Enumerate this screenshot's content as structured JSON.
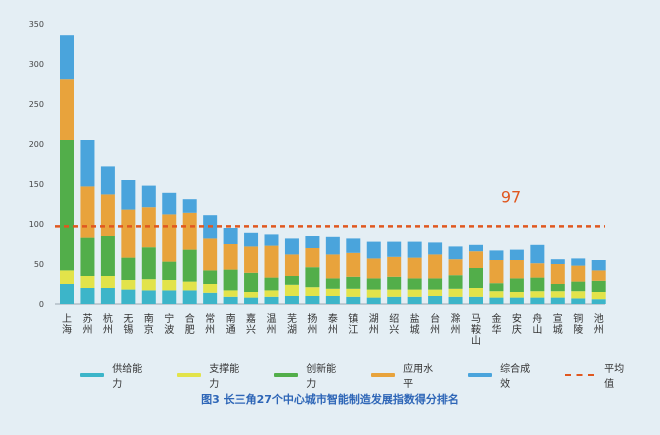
{
  "chart_data": {
    "type": "bar",
    "stacked": true,
    "title": "图3 长三角27个中心城市智能制造发展指数得分排名",
    "categories": [
      "上海",
      "苏州",
      "杭州",
      "无锡",
      "南京",
      "宁波",
      "合肥",
      "常州",
      "南通",
      "嘉兴",
      "温州",
      "芜湖",
      "扬州",
      "泰州",
      "镇江",
      "湖州",
      "绍兴",
      "盐城",
      "台州",
      "滁州",
      "马鞍山",
      "金华",
      "安庆",
      "舟山",
      "宣城",
      "铜陵",
      "池州"
    ],
    "series": [
      {
        "name": "供给能力",
        "color": "#3cb5c9",
        "values": [
          25,
          20,
          20,
          18,
          17,
          17,
          17,
          14,
          9,
          8,
          9,
          10,
          10,
          10,
          9,
          8,
          9,
          9,
          10,
          9,
          9,
          8,
          8,
          8,
          8,
          7,
          6
        ]
      },
      {
        "name": "支撑能力",
        "color": "#e2e34a",
        "values": [
          17,
          15,
          15,
          12,
          14,
          13,
          11,
          11,
          8,
          7,
          8,
          14,
          11,
          9,
          10,
          10,
          9,
          9,
          8,
          10,
          11,
          8,
          7,
          8,
          8,
          9,
          9
        ]
      },
      {
        "name": "创新能力",
        "color": "#52ae4a",
        "values": [
          163,
          48,
          50,
          28,
          40,
          23,
          40,
          17,
          26,
          24,
          16,
          11,
          25,
          13,
          15,
          14,
          16,
          14,
          14,
          17,
          25,
          10,
          17,
          17,
          9,
          12,
          14
        ]
      },
      {
        "name": "应用水平",
        "color": "#e8a33c",
        "values": [
          76,
          64,
          52,
          60,
          50,
          59,
          46,
          40,
          32,
          33,
          40,
          27,
          24,
          30,
          30,
          25,
          25,
          26,
          30,
          20,
          21,
          29,
          23,
          18,
          25,
          20,
          13
        ]
      },
      {
        "name": "综合成效",
        "color": "#4aa4dc",
        "values": [
          55,
          58,
          35,
          37,
          27,
          27,
          17,
          29,
          20,
          17,
          14,
          20,
          15,
          22,
          18,
          21,
          19,
          20,
          15,
          16,
          8,
          12,
          13,
          23,
          6,
          9,
          13
        ]
      }
    ],
    "average": {
      "name": "平均值",
      "value": 97,
      "label": "97",
      "color": "#e0571f"
    },
    "ylim": [
      0,
      350
    ],
    "yticks": [
      0,
      50,
      100,
      150,
      200,
      250,
      300,
      350
    ],
    "xlabel": "",
    "ylabel": ""
  }
}
